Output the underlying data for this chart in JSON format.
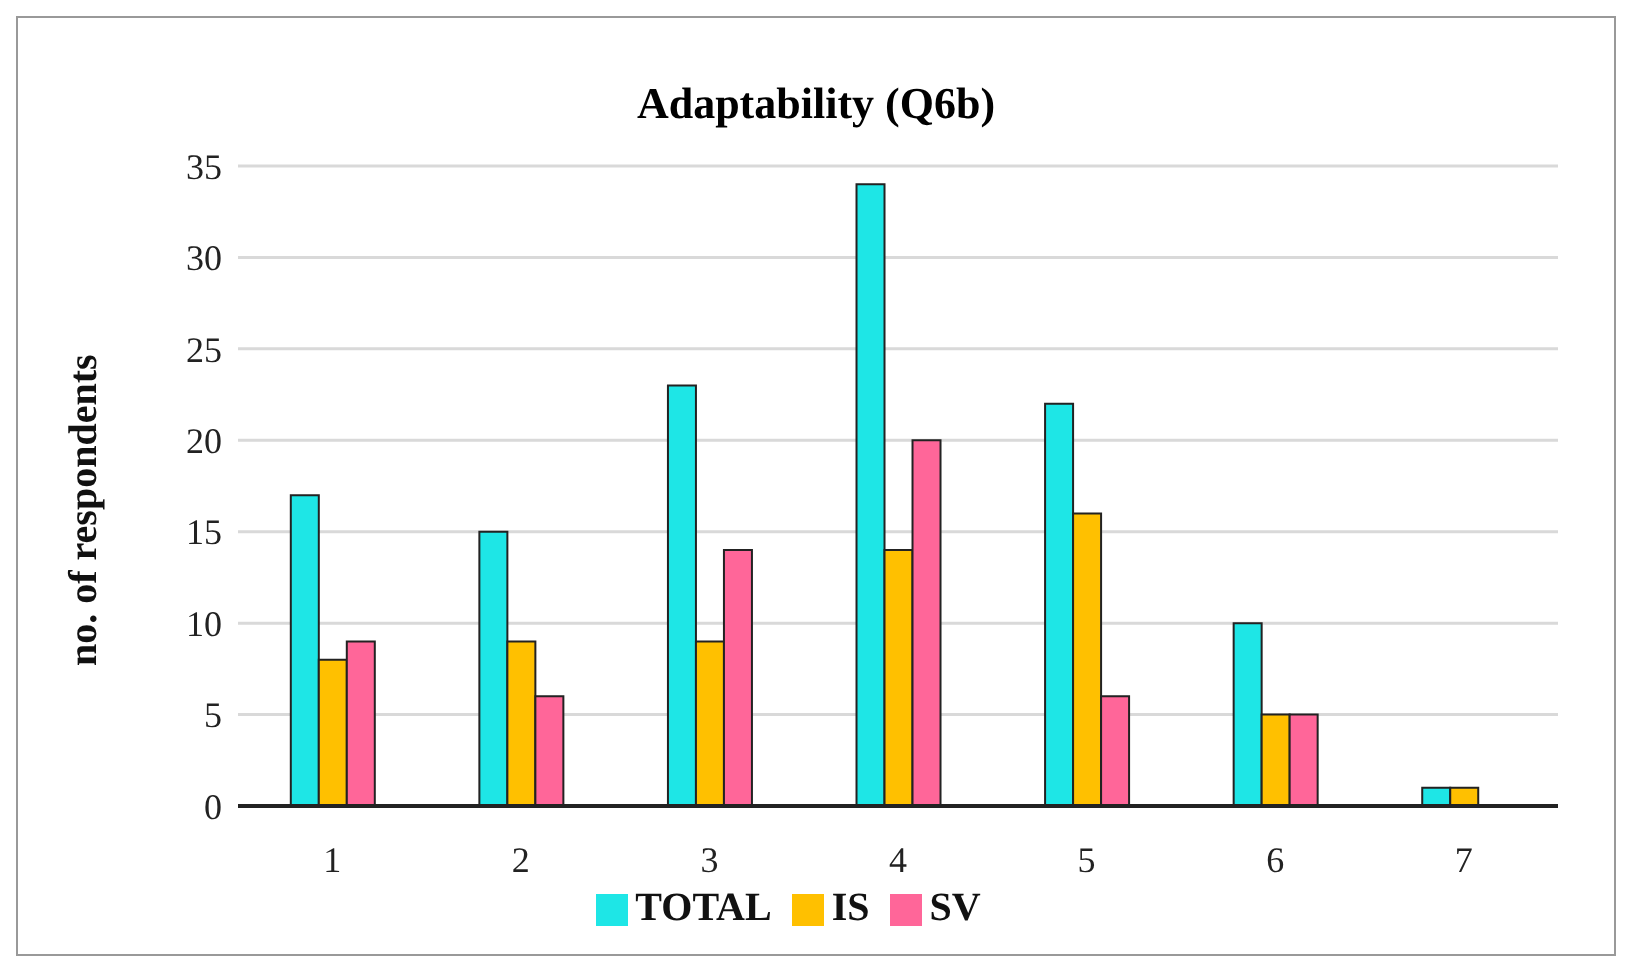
{
  "chart_data": {
    "type": "bar",
    "title": "Adaptability (Q6b)",
    "ylabel": "no. of respondents",
    "categories": [
      "1",
      "2",
      "3",
      "4",
      "5",
      "6",
      "7"
    ],
    "series": [
      {
        "name": "TOTAL",
        "color": "#1ee6e6",
        "values": [
          17,
          15,
          23,
          34,
          22,
          10,
          1
        ]
      },
      {
        "name": "IS",
        "color": "#ffc000",
        "values": [
          8,
          9,
          9,
          14,
          16,
          5,
          1
        ]
      },
      {
        "name": "SV",
        "color": "#ff6699",
        "values": [
          9,
          6,
          14,
          20,
          6,
          5,
          0
        ]
      }
    ],
    "ylim": [
      0,
      35
    ],
    "yticks": [
      0,
      5,
      10,
      15,
      20,
      25,
      30,
      35
    ],
    "grid": "y",
    "legend": "bottom"
  }
}
